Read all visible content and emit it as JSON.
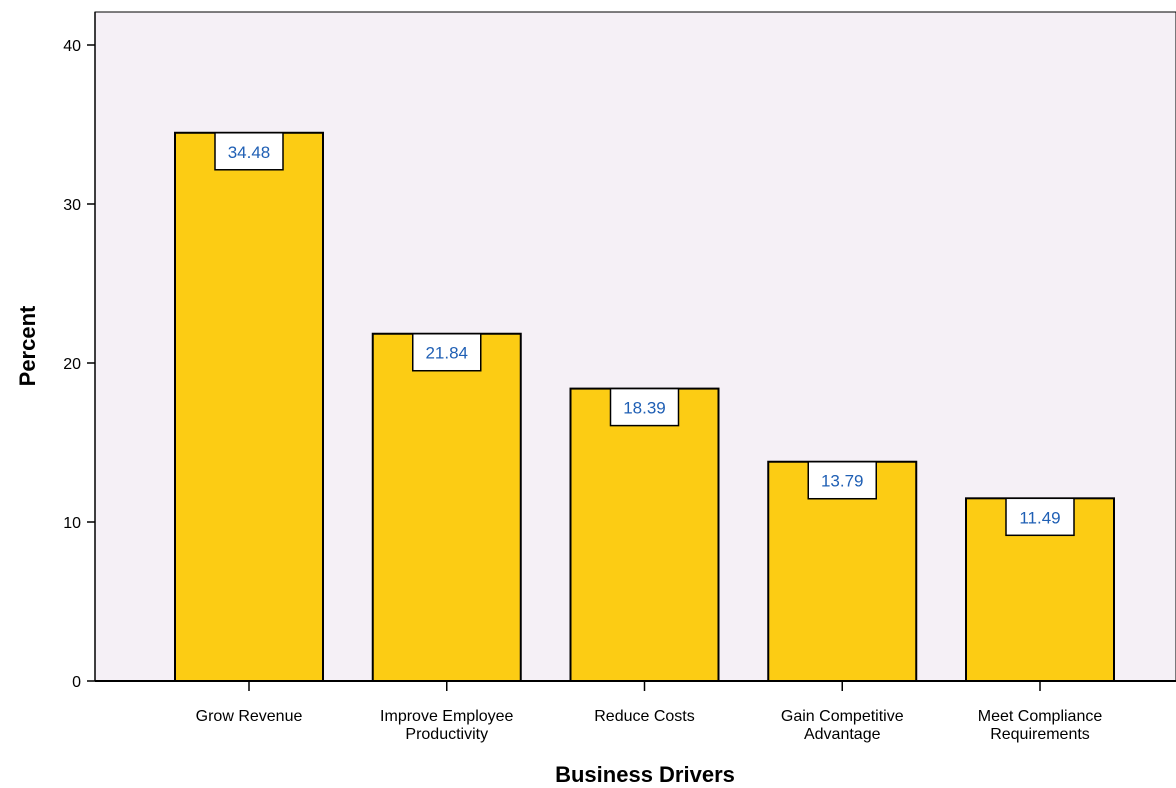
{
  "chart_data": {
    "type": "bar",
    "title": "",
    "xlabel": "Business Drivers",
    "ylabel": "Percent",
    "ylim": [
      0,
      42
    ],
    "yticks": [
      0,
      10,
      20,
      30,
      40
    ],
    "grid": false,
    "categories": [
      [
        "Grow Revenue"
      ],
      [
        "Improve Employee",
        "Productivity"
      ],
      [
        "Reduce Costs"
      ],
      [
        "Gain Competitive",
        "Advantage"
      ],
      [
        "Meet Compliance",
        "Requirements"
      ]
    ],
    "values": [
      34.48,
      21.84,
      18.39,
      13.79,
      11.49
    ],
    "data_labels": [
      "34.48",
      "21.84",
      "18.39",
      "13.79",
      "11.49"
    ],
    "colors": {
      "bar_fill": "#fccc14",
      "bar_stroke": "#000000",
      "plot_background": "#f5f0f6",
      "data_label_text": "#1f5fb4",
      "data_label_box": "#ffffff"
    }
  }
}
